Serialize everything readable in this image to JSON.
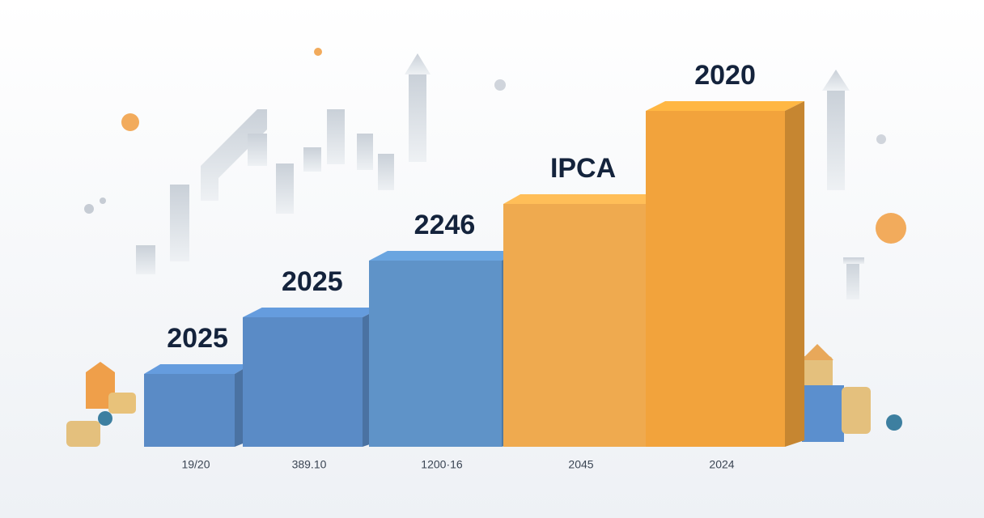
{
  "chart_data": {
    "type": "bar3d",
    "categories": [
      "19/20",
      "389.10",
      "1200·16",
      "2045",
      "2024"
    ],
    "bar_labels": [
      "2025",
      "2025",
      "2246",
      "IPCA",
      "2020"
    ],
    "values": [
      90,
      160,
      230,
      300,
      415
    ],
    "colors": [
      "#5a8bc6",
      "#5a8bc6",
      "#5f93c8",
      "#efaa4f",
      "#f2a33c"
    ],
    "ylim": [
      0,
      450
    ]
  }
}
